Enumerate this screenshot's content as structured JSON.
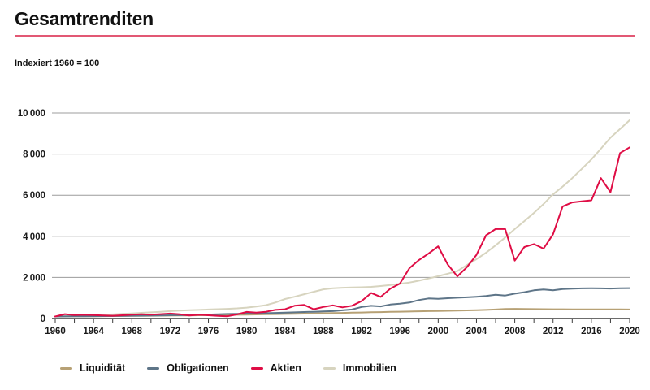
{
  "header": {
    "title": "Gesamtrenditen",
    "subtitle": "Indexiert 1960 = 100"
  },
  "colors": {
    "title_rule": "#e25874",
    "axis": "#3c3c3c",
    "gridline": "#9c9c9c",
    "text": "#1a1a1a"
  },
  "chart_data": {
    "type": "line",
    "title": "Gesamtrenditen",
    "subtitle": "Indexiert 1960 = 100",
    "xlabel": "",
    "ylabel": "",
    "x_range": [
      1960,
      2020
    ],
    "y_range": [
      0,
      10000
    ],
    "grid": "horizontal",
    "legend_position": "bottom",
    "x_tick_step_minor": 2,
    "x_tick_step_labeled": 4,
    "x_tick_labels": [
      "1960",
      "1964",
      "1968",
      "1972",
      "1976",
      "1980",
      "1984",
      "1988",
      "1992",
      "1996",
      "2000",
      "2004",
      "2008",
      "2012",
      "2016",
      "2020"
    ],
    "y_ticks": [
      {
        "value": 0,
        "label": "0"
      },
      {
        "value": 2000,
        "label": "2 000"
      },
      {
        "value": 4000,
        "label": "4 000"
      },
      {
        "value": 6000,
        "label": "6 000"
      },
      {
        "value": 8000,
        "label": "8 000"
      },
      {
        "value": 10000,
        "label": "10 000"
      }
    ],
    "z_order": [
      3,
      0,
      1,
      2
    ],
    "series": [
      {
        "name": "Liquidität",
        "color": "#b7a175",
        "values": [
          100,
          103,
          106,
          109,
          112,
          116,
          120,
          124,
          128,
          132,
          136,
          140,
          144,
          148,
          152,
          157,
          163,
          169,
          175,
          181,
          188,
          196,
          204,
          212,
          220,
          228,
          237,
          246,
          255,
          264,
          274,
          284,
          294,
          304,
          314,
          323,
          332,
          341,
          350,
          358,
          366,
          376,
          386,
          396,
          406,
          418,
          440,
          462,
          470,
          465,
          458,
          454,
          451,
          449,
          447,
          446,
          445,
          444,
          443,
          441,
          440
        ]
      },
      {
        "name": "Obligationen",
        "color": "#5e7588",
        "values": [
          100,
          104,
          108,
          112,
          116,
          120,
          124,
          128,
          133,
          138,
          143,
          150,
          157,
          163,
          170,
          180,
          195,
          210,
          222,
          230,
          238,
          246,
          260,
          274,
          287,
          300,
          315,
          330,
          345,
          360,
          400,
          440,
          560,
          615,
          590,
          680,
          720,
          780,
          900,
          975,
          960,
          990,
          1010,
          1030,
          1060,
          1095,
          1160,
          1120,
          1210,
          1280,
          1370,
          1410,
          1370,
          1430,
          1455,
          1465,
          1470,
          1465,
          1460,
          1475,
          1480
        ]
      },
      {
        "name": "Aktien",
        "color": "#df0d45",
        "values": [
          100,
          215,
          165,
          180,
          165,
          150,
          135,
          160,
          190,
          210,
          185,
          215,
          240,
          210,
          150,
          180,
          160,
          125,
          110,
          200,
          320,
          290,
          330,
          420,
          450,
          620,
          660,
          450,
          560,
          640,
          540,
          620,
          850,
          1240,
          1050,
          1450,
          1700,
          2450,
          2850,
          3160,
          3510,
          2630,
          2050,
          2500,
          3100,
          4050,
          4350,
          4350,
          2820,
          3480,
          3620,
          3400,
          4100,
          5450,
          5650,
          5700,
          5750,
          6830,
          6150,
          8050,
          8330
        ]
      },
      {
        "name": "Immobilien",
        "color": "#d7d4bf",
        "values": [
          100,
          115,
          130,
          145,
          160,
          180,
          200,
          225,
          250,
          275,
          300,
          330,
          360,
          385,
          405,
          420,
          440,
          455,
          470,
          495,
          530,
          580,
          650,
          780,
          950,
          1060,
          1180,
          1300,
          1420,
          1470,
          1500,
          1510,
          1520,
          1540,
          1580,
          1630,
          1690,
          1750,
          1840,
          1950,
          2060,
          2180,
          2310,
          2600,
          2890,
          3200,
          3560,
          3940,
          4350,
          4740,
          5140,
          5570,
          6040,
          6420,
          6830,
          7280,
          7740,
          8260,
          8800,
          9220,
          9650
        ]
      }
    ]
  }
}
